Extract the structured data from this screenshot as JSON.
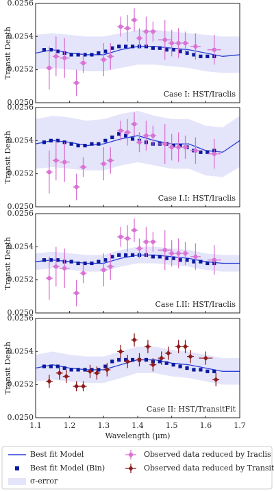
{
  "chart_data": [
    {
      "type": "line",
      "ylabel": "Transit Depth",
      "annotation": "Case I: HST/Iraclis",
      "xlim": [
        1.1,
        1.7
      ],
      "ylim": [
        0.025,
        0.0256
      ],
      "xticks": [
        1.1,
        1.2,
        1.3,
        1.4,
        1.5,
        1.6,
        1.7
      ],
      "yticks": [
        {
          "value": 0.025,
          "label": "0.0250"
        },
        0.0252,
        0.0254,
        0.0256
      ],
      "band": {
        "color": "#e4e4fa",
        "x": [
          1.1,
          1.15,
          1.2,
          1.25,
          1.3,
          1.35,
          1.4,
          1.45,
          1.5,
          1.55,
          1.6,
          1.65,
          1.7
        ],
        "lower": [
          0.0252,
          0.02521,
          0.0252,
          0.02519,
          0.02519,
          0.02521,
          0.02523,
          0.02523,
          0.02522,
          0.02521,
          0.02519,
          0.02518,
          0.02518
        ],
        "upper": [
          0.02541,
          0.02542,
          0.02541,
          0.0254,
          0.0254,
          0.02542,
          0.02544,
          0.02544,
          0.02543,
          0.02542,
          0.02541,
          0.0254,
          0.0254
        ]
      },
      "model": {
        "color": "#2a3fd6",
        "x": [
          1.1,
          1.15,
          1.2,
          1.25,
          1.3,
          1.35,
          1.4,
          1.45,
          1.5,
          1.55,
          1.6,
          1.65,
          1.7
        ],
        "values": [
          0.0253,
          0.02532,
          0.0253,
          0.02529,
          0.02529,
          0.02532,
          0.02534,
          0.02534,
          0.02533,
          0.02532,
          0.0253,
          0.02528,
          0.02529
        ]
      },
      "binned": {
        "color": "#0a1a9e",
        "x": [
          1.125,
          1.145,
          1.165,
          1.185,
          1.205,
          1.225,
          1.245,
          1.265,
          1.285,
          1.305,
          1.325,
          1.345,
          1.365,
          1.385,
          1.405,
          1.425,
          1.445,
          1.465,
          1.485,
          1.505,
          1.525,
          1.545,
          1.565,
          1.585,
          1.605,
          1.625
        ],
        "values": [
          0.02532,
          0.02532,
          0.02531,
          0.0253,
          0.02529,
          0.02529,
          0.02529,
          0.02529,
          0.0253,
          0.02531,
          0.02533,
          0.02534,
          0.02534,
          0.02534,
          0.02534,
          0.02534,
          0.02533,
          0.02533,
          0.02532,
          0.02532,
          0.02531,
          0.0253,
          0.02529,
          0.02528,
          0.02528,
          0.02528
        ]
      },
      "observed": {
        "color": "#d973d4",
        "marker": "o",
        "x": [
          1.14,
          1.16,
          1.185,
          1.22,
          1.24,
          1.3,
          1.32,
          1.35,
          1.37,
          1.39,
          1.405,
          1.425,
          1.445,
          1.48,
          1.5,
          1.52,
          1.54,
          1.57,
          1.625
        ],
        "values": [
          0.02521,
          0.02528,
          0.02527,
          0.02512,
          0.02524,
          0.02526,
          0.02528,
          0.02546,
          0.02545,
          0.0255,
          0.02539,
          0.02543,
          0.02543,
          0.02538,
          0.02536,
          0.02536,
          0.02536,
          0.02534,
          0.02532
        ],
        "yerr": [
          0.00013,
          0.00012,
          0.00012,
          8e-05,
          6e-05,
          0.0001,
          8e-05,
          6e-05,
          8e-05,
          7e-05,
          6e-05,
          9e-05,
          6e-05,
          0.00012,
          8e-05,
          9e-05,
          7e-05,
          8e-05,
          9e-05
        ],
        "xerr": [
          0.01,
          0.01,
          0.015,
          0.01,
          0.01,
          0.01,
          0.01,
          0.01,
          0.01,
          0.01,
          0.01,
          0.01,
          0.01,
          0.02,
          0.01,
          0.01,
          0.01,
          0.015,
          0.02
        ]
      }
    },
    {
      "type": "line",
      "ylabel": "Transit Depth",
      "annotation": "Case I.I: HST/Iraclis",
      "xlim": [
        1.1,
        1.7
      ],
      "ylim": [
        0.025,
        0.0256
      ],
      "xticks": [
        1.1,
        1.2,
        1.3,
        1.4,
        1.5,
        1.6,
        1.7
      ],
      "yticks": [
        {
          "value": 0.025,
          "label": "0.0250"
        },
        0.0252,
        0.0254,
        0.0256
      ],
      "band": {
        "color": "#e4e4fa",
        "x": [
          1.1,
          1.15,
          1.2,
          1.25,
          1.3,
          1.35,
          1.4,
          1.45,
          1.5,
          1.55,
          1.6,
          1.65,
          1.7
        ],
        "lower": [
          0.02523,
          0.02524,
          0.02523,
          0.02522,
          0.02522,
          0.02525,
          0.02527,
          0.02525,
          0.02523,
          0.02523,
          0.02519,
          0.02518,
          0.02524
        ],
        "upper": [
          0.02553,
          0.02555,
          0.02554,
          0.02552,
          0.02553,
          0.02556,
          0.02558,
          0.02555,
          0.02553,
          0.02553,
          0.02549,
          0.02548,
          0.02555
        ]
      },
      "model": {
        "color": "#2a3fd6",
        "x": [
          1.1,
          1.15,
          1.2,
          1.25,
          1.3,
          1.35,
          1.4,
          1.45,
          1.5,
          1.55,
          1.6,
          1.65,
          1.7
        ],
        "values": [
          0.02538,
          0.0254,
          0.02539,
          0.02537,
          0.02538,
          0.02541,
          0.02543,
          0.0254,
          0.02538,
          0.02538,
          0.02534,
          0.02533,
          0.0254
        ]
      },
      "binned": {
        "color": "#0a1a9e",
        "x": [
          1.125,
          1.145,
          1.165,
          1.185,
          1.205,
          1.225,
          1.245,
          1.265,
          1.285,
          1.305,
          1.325,
          1.345,
          1.365,
          1.385,
          1.405,
          1.425,
          1.445,
          1.465,
          1.485,
          1.505,
          1.525,
          1.545,
          1.565,
          1.585,
          1.605,
          1.625
        ],
        "values": [
          0.02539,
          0.0254,
          0.0254,
          0.02539,
          0.02538,
          0.02537,
          0.02537,
          0.02538,
          0.02538,
          0.0254,
          0.02542,
          0.02544,
          0.02543,
          0.02541,
          0.0254,
          0.02539,
          0.02538,
          0.02538,
          0.02538,
          0.02537,
          0.02537,
          0.02536,
          0.02534,
          0.02533,
          0.02533,
          0.02534
        ]
      },
      "observed": {
        "color": "#d973d4",
        "marker": "o",
        "x": [
          1.14,
          1.16,
          1.185,
          1.22,
          1.24,
          1.3,
          1.32,
          1.35,
          1.37,
          1.39,
          1.405,
          1.425,
          1.445,
          1.48,
          1.5,
          1.52,
          1.54,
          1.57,
          1.625
        ],
        "values": [
          0.02521,
          0.02528,
          0.02527,
          0.02512,
          0.02524,
          0.02526,
          0.02528,
          0.02546,
          0.02545,
          0.0255,
          0.02539,
          0.02543,
          0.02543,
          0.02538,
          0.02536,
          0.02536,
          0.02536,
          0.02534,
          0.02532
        ],
        "yerr": [
          0.00013,
          0.00012,
          0.00012,
          8e-05,
          6e-05,
          0.0001,
          8e-05,
          6e-05,
          8e-05,
          7e-05,
          6e-05,
          9e-05,
          6e-05,
          0.00012,
          8e-05,
          9e-05,
          7e-05,
          8e-05,
          9e-05
        ],
        "xerr": [
          0.01,
          0.01,
          0.015,
          0.01,
          0.01,
          0.01,
          0.01,
          0.01,
          0.01,
          0.01,
          0.01,
          0.01,
          0.01,
          0.02,
          0.01,
          0.01,
          0.01,
          0.015,
          0.02
        ]
      }
    },
    {
      "type": "line",
      "ylabel": "Transit Depth",
      "annotation": "Case I.II: HST/Iraclis",
      "xlim": [
        1.1,
        1.7
      ],
      "ylim": [
        0.025,
        0.0256
      ],
      "xticks": [
        1.1,
        1.2,
        1.3,
        1.4,
        1.5,
        1.6,
        1.7
      ],
      "yticks": [
        {
          "value": 0.025,
          "label": "0.0250"
        },
        0.0252,
        0.0254,
        0.0256
      ],
      "band": {
        "color": "#e4e4fa",
        "x": [
          1.1,
          1.15,
          1.2,
          1.25,
          1.3,
          1.35,
          1.4,
          1.45,
          1.5,
          1.55,
          1.6,
          1.65,
          1.7
        ],
        "lower": [
          0.02526,
          0.02527,
          0.02526,
          0.02525,
          0.02525,
          0.02528,
          0.0253,
          0.0253,
          0.02529,
          0.02528,
          0.02526,
          0.02525,
          0.02525
        ],
        "upper": [
          0.02536,
          0.02537,
          0.02536,
          0.02535,
          0.02535,
          0.02538,
          0.0254,
          0.0254,
          0.02539,
          0.02538,
          0.02536,
          0.02535,
          0.02535
        ]
      },
      "model": {
        "color": "#2a3fd6",
        "x": [
          1.1,
          1.15,
          1.2,
          1.25,
          1.3,
          1.35,
          1.4,
          1.45,
          1.5,
          1.55,
          1.6,
          1.65,
          1.7
        ],
        "values": [
          0.02531,
          0.02532,
          0.02531,
          0.0253,
          0.0253,
          0.02533,
          0.02535,
          0.02535,
          0.02534,
          0.02533,
          0.02531,
          0.0253,
          0.0253
        ]
      },
      "binned": {
        "color": "#0a1a9e",
        "x": [
          1.125,
          1.145,
          1.165,
          1.185,
          1.205,
          1.225,
          1.245,
          1.265,
          1.285,
          1.305,
          1.325,
          1.345,
          1.365,
          1.385,
          1.405,
          1.425,
          1.445,
          1.465,
          1.485,
          1.505,
          1.525,
          1.545,
          1.565,
          1.585,
          1.605,
          1.625
        ],
        "values": [
          0.02532,
          0.02532,
          0.02532,
          0.02531,
          0.02531,
          0.0253,
          0.0253,
          0.0253,
          0.02531,
          0.02532,
          0.02534,
          0.02535,
          0.02535,
          0.02535,
          0.02535,
          0.02535,
          0.02534,
          0.02534,
          0.02533,
          0.02533,
          0.02532,
          0.02532,
          0.02531,
          0.02531,
          0.0253,
          0.0253
        ]
      },
      "observed": {
        "color": "#d973d4",
        "marker": "o",
        "x": [
          1.14,
          1.16,
          1.185,
          1.22,
          1.24,
          1.3,
          1.32,
          1.35,
          1.37,
          1.39,
          1.405,
          1.425,
          1.445,
          1.48,
          1.5,
          1.52,
          1.54,
          1.57,
          1.625
        ],
        "values": [
          0.02521,
          0.02528,
          0.02527,
          0.02512,
          0.02524,
          0.02526,
          0.02528,
          0.02546,
          0.02545,
          0.0255,
          0.02539,
          0.02543,
          0.02543,
          0.02538,
          0.02536,
          0.02536,
          0.02536,
          0.02534,
          0.02532
        ],
        "yerr": [
          0.00013,
          0.00012,
          0.00012,
          8e-05,
          6e-05,
          0.0001,
          8e-05,
          6e-05,
          8e-05,
          7e-05,
          6e-05,
          9e-05,
          6e-05,
          0.00012,
          8e-05,
          9e-05,
          7e-05,
          8e-05,
          9e-05
        ],
        "xerr": [
          0.01,
          0.01,
          0.015,
          0.01,
          0.01,
          0.01,
          0.01,
          0.01,
          0.01,
          0.01,
          0.01,
          0.01,
          0.01,
          0.02,
          0.01,
          0.01,
          0.01,
          0.015,
          0.02
        ]
      }
    },
    {
      "type": "line",
      "ylabel": "Transit Depth",
      "annotation": "Case II: HST/TransitFit",
      "xlabel": "Wavelength (μm)",
      "xlim": [
        1.1,
        1.7
      ],
      "ylim": [
        0.025,
        0.0256
      ],
      "xticks": [
        1.1,
        1.2,
        1.3,
        1.4,
        1.5,
        1.6,
        1.7
      ],
      "yticks": [
        {
          "value": 0.025,
          "label": "0.0250"
        },
        0.0252,
        0.0254,
        0.0256
      ],
      "band": {
        "color": "#e4e4fa",
        "x": [
          1.1,
          1.15,
          1.2,
          1.25,
          1.3,
          1.35,
          1.4,
          1.45,
          1.5,
          1.55,
          1.6,
          1.65,
          1.7
        ],
        "lower": [
          0.02522,
          0.02523,
          0.02522,
          0.02521,
          0.02521,
          0.02524,
          0.02527,
          0.02527,
          0.02525,
          0.02524,
          0.02522,
          0.0252,
          0.0252
        ],
        "upper": [
          0.02538,
          0.0254,
          0.02538,
          0.02537,
          0.02537,
          0.0254,
          0.02543,
          0.02543,
          0.02541,
          0.0254,
          0.02538,
          0.02536,
          0.02536
        ]
      },
      "model": {
        "color": "#2a3fd6",
        "x": [
          1.1,
          1.15,
          1.2,
          1.25,
          1.3,
          1.35,
          1.4,
          1.45,
          1.5,
          1.55,
          1.6,
          1.65,
          1.7
        ],
        "values": [
          0.0253,
          0.02532,
          0.0253,
          0.02529,
          0.02529,
          0.02532,
          0.02535,
          0.02535,
          0.02533,
          0.02532,
          0.0253,
          0.02528,
          0.02528
        ]
      },
      "binned": {
        "color": "#0a1a9e",
        "x": [
          1.125,
          1.145,
          1.165,
          1.185,
          1.205,
          1.225,
          1.245,
          1.265,
          1.285,
          1.305,
          1.325,
          1.345,
          1.365,
          1.385,
          1.405,
          1.425,
          1.445,
          1.465,
          1.485,
          1.505,
          1.525,
          1.545,
          1.565,
          1.585,
          1.605,
          1.625
        ],
        "values": [
          0.02531,
          0.02531,
          0.02531,
          0.0253,
          0.02529,
          0.02529,
          0.02529,
          0.02529,
          0.02529,
          0.02531,
          0.02534,
          0.02535,
          0.02535,
          0.02535,
          0.02535,
          0.02535,
          0.02534,
          0.02534,
          0.02533,
          0.02532,
          0.02531,
          0.0253,
          0.02529,
          0.02529,
          0.02528,
          0.02528
        ]
      },
      "observed": {
        "color": "#8e1c1c",
        "marker": "D",
        "x": [
          1.14,
          1.17,
          1.19,
          1.22,
          1.24,
          1.26,
          1.28,
          1.31,
          1.35,
          1.37,
          1.39,
          1.405,
          1.43,
          1.445,
          1.47,
          1.49,
          1.52,
          1.54,
          1.555,
          1.6,
          1.63
        ],
        "values": [
          0.02522,
          0.02527,
          0.02525,
          0.02519,
          0.02519,
          0.02528,
          0.02527,
          0.02529,
          0.0254,
          0.02534,
          0.02547,
          0.02535,
          0.02543,
          0.02532,
          0.02536,
          0.02539,
          0.02543,
          0.02543,
          0.02537,
          0.02536,
          0.02523
        ],
        "yerr": [
          4e-05,
          4e-05,
          4e-05,
          3e-05,
          3e-05,
          4e-05,
          4e-05,
          4e-05,
          4e-05,
          4e-05,
          4e-05,
          4e-05,
          4e-05,
          4e-05,
          4e-05,
          4e-05,
          4e-05,
          4e-05,
          4e-05,
          4e-05,
          4e-05
        ],
        "xerr": [
          0.01,
          0.01,
          0.01,
          0.01,
          0.01,
          0.01,
          0.01,
          0.01,
          0.01,
          0.01,
          0.01,
          0.01,
          0.01,
          0.01,
          0.01,
          0.01,
          0.01,
          0.01,
          0.01,
          0.02,
          0.01
        ]
      }
    }
  ],
  "legend": [
    {
      "label": "Best fit Model",
      "color": "#2a3fd6"
    },
    {
      "label": "Best fit Model (Bin)",
      "color": "#0a1a9e"
    },
    {
      "label": "σ-error",
      "color": "#e4e4fa"
    },
    {
      "label": "Observed data reduced by Iraclis",
      "color": "#d973d4"
    },
    {
      "label": "Observed data reduced by TransitFit",
      "color": "#8e1c1c"
    }
  ]
}
